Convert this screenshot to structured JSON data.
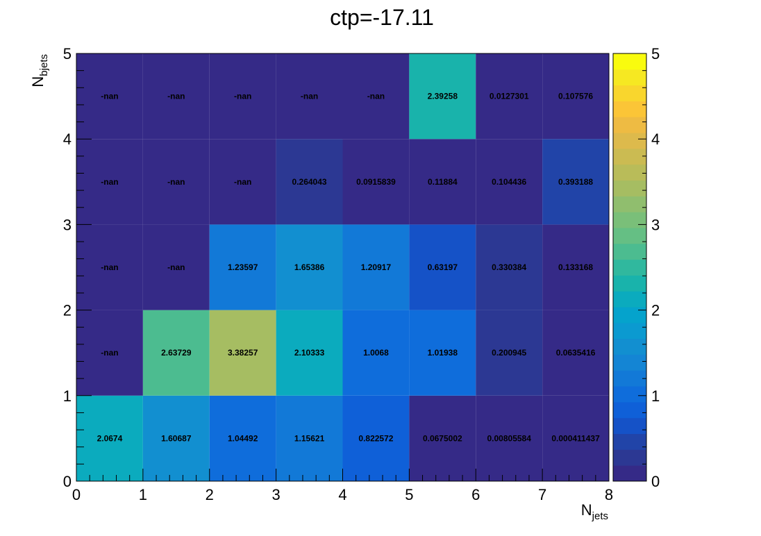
{
  "chart_data": {
    "type": "heatmap",
    "title": "ctp=-17.11",
    "xlabel_main": "N",
    "xlabel_sub": "jets",
    "ylabel_main": "N",
    "ylabel_sub": "bjets",
    "xlim": [
      0,
      8
    ],
    "ylim": [
      0,
      5
    ],
    "zlim": [
      0,
      5
    ],
    "x_ticks": [
      "0",
      "1",
      "2",
      "3",
      "4",
      "5",
      "6",
      "7",
      "8"
    ],
    "y_ticks": [
      "0",
      "1",
      "2",
      "3",
      "4",
      "5"
    ],
    "z_ticks": [
      "0",
      "1",
      "2",
      "3",
      "4",
      "5"
    ],
    "grid": false,
    "colormap": "parula",
    "palette": [
      "#352a87",
      "#2c3893",
      "#2144a8",
      "#1552c7",
      "#0f60d8",
      "#0f6ddb",
      "#1279d7",
      "#1485d4",
      "#128fd0",
      "#0b9ad0",
      "#05a3cc",
      "#0babbe",
      "#19b3ab",
      "#30b89e",
      "#4cbc90",
      "#65bf84",
      "#7abf79",
      "#90be6e",
      "#a6bd62",
      "#b9bc59",
      "#cbbb52",
      "#ddba4c",
      "#eebb43",
      "#fbc537",
      "#f9d62d",
      "#f6e822",
      "#f9fb0e"
    ],
    "cells": [
      {
        "x": 0,
        "y": 0,
        "value": 2.0674,
        "label": "2.0674"
      },
      {
        "x": 1,
        "y": 0,
        "value": 1.60687,
        "label": "1.60687"
      },
      {
        "x": 2,
        "y": 0,
        "value": 1.04492,
        "label": "1.04492"
      },
      {
        "x": 3,
        "y": 0,
        "value": 1.15621,
        "label": "1.15621"
      },
      {
        "x": 4,
        "y": 0,
        "value": 0.822572,
        "label": "0.822572"
      },
      {
        "x": 5,
        "y": 0,
        "value": 0.0675002,
        "label": "0.0675002"
      },
      {
        "x": 6,
        "y": 0,
        "value": 0.00805584,
        "label": "0.00805584"
      },
      {
        "x": 7,
        "y": 0,
        "value": 0.000411437,
        "label": "0.000411437"
      },
      {
        "x": 0,
        "y": 1,
        "value": null,
        "label": "-nan"
      },
      {
        "x": 1,
        "y": 1,
        "value": 2.63729,
        "label": "2.63729"
      },
      {
        "x": 2,
        "y": 1,
        "value": 3.38257,
        "label": "3.38257"
      },
      {
        "x": 3,
        "y": 1,
        "value": 2.10333,
        "label": "2.10333"
      },
      {
        "x": 4,
        "y": 1,
        "value": 1.0068,
        "label": "1.0068"
      },
      {
        "x": 5,
        "y": 1,
        "value": 1.01938,
        "label": "1.01938"
      },
      {
        "x": 6,
        "y": 1,
        "value": 0.200945,
        "label": "0.200945"
      },
      {
        "x": 7,
        "y": 1,
        "value": 0.0635416,
        "label": "0.0635416"
      },
      {
        "x": 0,
        "y": 2,
        "value": null,
        "label": "-nan"
      },
      {
        "x": 1,
        "y": 2,
        "value": null,
        "label": "-nan"
      },
      {
        "x": 2,
        "y": 2,
        "value": 1.23597,
        "label": "1.23597"
      },
      {
        "x": 3,
        "y": 2,
        "value": 1.65386,
        "label": "1.65386"
      },
      {
        "x": 4,
        "y": 2,
        "value": 1.20917,
        "label": "1.20917"
      },
      {
        "x": 5,
        "y": 2,
        "value": 0.63197,
        "label": "0.63197"
      },
      {
        "x": 6,
        "y": 2,
        "value": 0.330384,
        "label": "0.330384"
      },
      {
        "x": 7,
        "y": 2,
        "value": 0.133168,
        "label": "0.133168"
      },
      {
        "x": 0,
        "y": 3,
        "value": null,
        "label": "-nan"
      },
      {
        "x": 1,
        "y": 3,
        "value": null,
        "label": "-nan"
      },
      {
        "x": 2,
        "y": 3,
        "value": null,
        "label": "-nan"
      },
      {
        "x": 3,
        "y": 3,
        "value": 0.264043,
        "label": "0.264043"
      },
      {
        "x": 4,
        "y": 3,
        "value": 0.0915839,
        "label": "0.0915839"
      },
      {
        "x": 5,
        "y": 3,
        "value": 0.11884,
        "label": "0.11884"
      },
      {
        "x": 6,
        "y": 3,
        "value": 0.104436,
        "label": "0.104436"
      },
      {
        "x": 7,
        "y": 3,
        "value": 0.393188,
        "label": "0.393188"
      },
      {
        "x": 0,
        "y": 4,
        "value": null,
        "label": "-nan"
      },
      {
        "x": 1,
        "y": 4,
        "value": null,
        "label": "-nan"
      },
      {
        "x": 2,
        "y": 4,
        "value": null,
        "label": "-nan"
      },
      {
        "x": 3,
        "y": 4,
        "value": null,
        "label": "-nan"
      },
      {
        "x": 4,
        "y": 4,
        "value": null,
        "label": "-nan"
      },
      {
        "x": 5,
        "y": 4,
        "value": 2.39258,
        "label": "2.39258"
      },
      {
        "x": 6,
        "y": 4,
        "value": 0.0127301,
        "label": "0.0127301"
      },
      {
        "x": 7,
        "y": 4,
        "value": 0.107576,
        "label": "0.107576"
      }
    ]
  }
}
